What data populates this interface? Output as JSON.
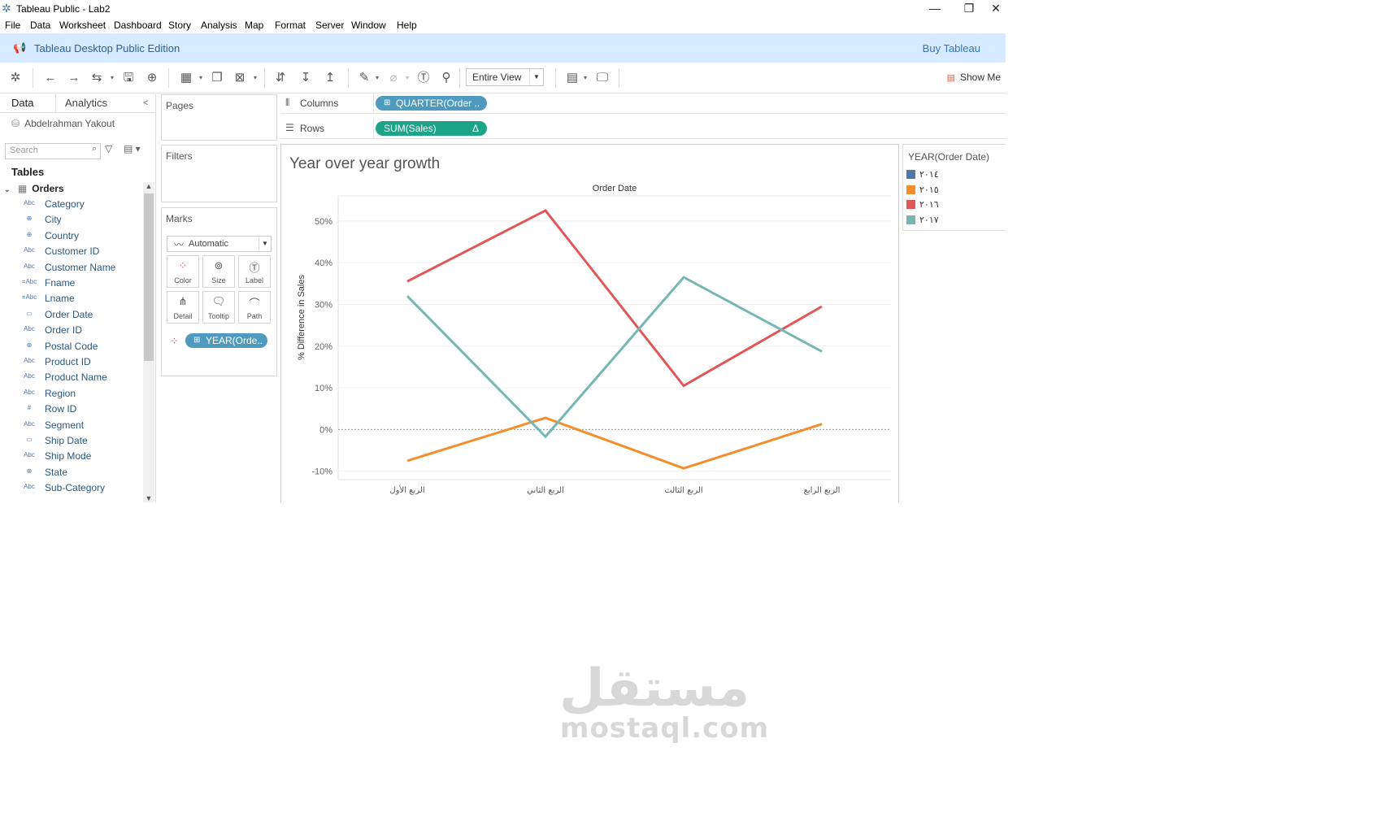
{
  "window": {
    "title": "Tableau Public - Lab2",
    "minimize": "—",
    "restore": "❐",
    "close": "✕"
  },
  "menu": [
    "File",
    "Data",
    "Worksheet",
    "Dashboard",
    "Story",
    "Analysis",
    "Map",
    "Format",
    "Server",
    "Window",
    "Help"
  ],
  "banner": {
    "text": "Tableau Desktop Public Edition",
    "buy": "Buy Tableau"
  },
  "toolbar": {
    "view_mode": "Entire View",
    "show_me": "Show Me"
  },
  "datapane": {
    "tab_data": "Data",
    "tab_analytics": "Analytics",
    "collapse": "<",
    "connection": "Abdelrahman Yakout",
    "search_placeholder": "Search",
    "tables_heading": "Tables",
    "table_name": "Orders",
    "fields": [
      {
        "icon": "Abc",
        "name": "Category"
      },
      {
        "icon": "⊕",
        "name": "City"
      },
      {
        "icon": "⊕",
        "name": "Country"
      },
      {
        "icon": "Abc",
        "name": "Customer ID"
      },
      {
        "icon": "Abc",
        "name": "Customer Name"
      },
      {
        "icon": "=Abc",
        "name": "Fname"
      },
      {
        "icon": "=Abc",
        "name": "Lname"
      },
      {
        "icon": "▭",
        "name": "Order Date"
      },
      {
        "icon": "Abc",
        "name": "Order ID"
      },
      {
        "icon": "⊕",
        "name": "Postal Code"
      },
      {
        "icon": "Abc",
        "name": "Product ID"
      },
      {
        "icon": "Abc",
        "name": "Product Name"
      },
      {
        "icon": "Abc",
        "name": "Region"
      },
      {
        "icon": "#",
        "name": "Row ID"
      },
      {
        "icon": "Abc",
        "name": "Segment"
      },
      {
        "icon": "▭",
        "name": "Ship Date"
      },
      {
        "icon": "Abc",
        "name": "Ship Mode"
      },
      {
        "icon": "⊕",
        "name": "State"
      },
      {
        "icon": "Abc",
        "name": "Sub-Category"
      }
    ]
  },
  "cards": {
    "pages": "Pages",
    "filters": "Filters",
    "marks": "Marks",
    "mark_type": "Automatic",
    "mark_buttons": [
      "Color",
      "Size",
      "Label",
      "Detail",
      "Tooltip",
      "Path"
    ],
    "color_pill": "YEAR(Orde.."
  },
  "shelves": {
    "columns_label": "Columns",
    "columns_pill": "QUARTER(Order ..",
    "rows_label": "Rows",
    "rows_pill": "SUM(Sales)",
    "rows_pill_delta": "Δ"
  },
  "viz": {
    "title": "Year over year growth"
  },
  "legend": {
    "title": "YEAR(Order Date)",
    "items": [
      {
        "label": "٢٠١٤",
        "color": "#4e79a7"
      },
      {
        "label": "٢٠١٥",
        "color": "#f28e2b"
      },
      {
        "label": "٢٠١٦",
        "color": "#e15759"
      },
      {
        "label": "٢٠١٧",
        "color": "#76b7b2"
      }
    ]
  },
  "chart_data": {
    "type": "line",
    "title": "",
    "xlabel": "Order Date",
    "ylabel": "% Difference in Sales",
    "categories": [
      "الربع الأول",
      "الربع الثاني",
      "الربع الثالث",
      "الربع الرابع"
    ],
    "y_ticks": [
      "50%",
      "40%",
      "30%",
      "20%",
      "10%",
      "0%",
      "-10%"
    ],
    "ylim": [
      -12,
      56
    ],
    "series": [
      {
        "name": "٢٠١٥",
        "color": "#f28e2b",
        "values": [
          -7.5,
          2.8,
          -9.3,
          1.3
        ]
      },
      {
        "name": "٢٠١٦",
        "color": "#e15759",
        "values": [
          35.5,
          52.5,
          10.5,
          29.5
        ]
      },
      {
        "name": "٢٠١٧",
        "color": "#76b7b2",
        "values": [
          32.0,
          -1.7,
          36.5,
          18.7
        ]
      }
    ],
    "zero_line": true,
    "legend_position": "right"
  },
  "watermark": {
    "arabic": "مستقل",
    "latin": "mostaql.com"
  }
}
